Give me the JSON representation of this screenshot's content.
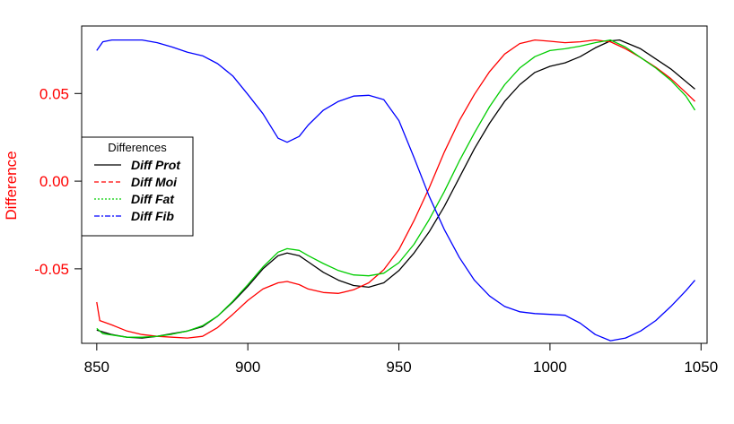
{
  "chart_data": {
    "type": "line",
    "title": "",
    "xlabel": "",
    "ylabel": "Difference",
    "xlim": [
      845,
      1052
    ],
    "ylim": [
      -0.0925,
      0.0885
    ],
    "x_ticks": [
      "850",
      "900",
      "950",
      "1000",
      "1050"
    ],
    "y_ticks": [
      "0.05",
      "0.00",
      "-0.05"
    ],
    "grid": false,
    "legend": {
      "title": "Differences",
      "placement": "left",
      "entries": [
        "Diff Prot",
        "Diff Moi",
        "Diff Fat",
        "Diff Fib"
      ]
    },
    "series": [
      {
        "name": "Diff Prot",
        "color": "#000000",
        "linestyle": "solid",
        "points": [
          [
            850,
            -0.085
          ],
          [
            855,
            -0.0875
          ],
          [
            860,
            -0.089
          ],
          [
            865,
            -0.0895
          ],
          [
            870,
            -0.0885
          ],
          [
            875,
            -0.087
          ],
          [
            880,
            -0.0855
          ],
          [
            885,
            -0.083
          ],
          [
            890,
            -0.077
          ],
          [
            895,
            -0.069
          ],
          [
            900,
            -0.06
          ],
          [
            905,
            -0.05
          ],
          [
            910,
            -0.0425
          ],
          [
            913,
            -0.041
          ],
          [
            917,
            -0.0425
          ],
          [
            920,
            -0.046
          ],
          [
            925,
            -0.052
          ],
          [
            930,
            -0.0565
          ],
          [
            935,
            -0.0595
          ],
          [
            940,
            -0.0605
          ],
          [
            945,
            -0.058
          ],
          [
            950,
            -0.051
          ],
          [
            955,
            -0.041
          ],
          [
            960,
            -0.029
          ],
          [
            965,
            -0.0145
          ],
          [
            970,
            0.002
          ],
          [
            975,
            0.0185
          ],
          [
            980,
            0.033
          ],
          [
            985,
            0.0455
          ],
          [
            990,
            0.055
          ],
          [
            995,
            0.062
          ],
          [
            1000,
            0.0655
          ],
          [
            1005,
            0.0675
          ],
          [
            1010,
            0.071
          ],
          [
            1015,
            0.076
          ],
          [
            1020,
            0.08
          ],
          [
            1023,
            0.0805
          ],
          [
            1030,
            0.0755
          ],
          [
            1040,
            0.064
          ],
          [
            1048,
            0.0525
          ]
        ]
      },
      {
        "name": "Diff Moi",
        "color": "#ff0000",
        "linestyle": "solid",
        "points": [
          [
            850,
            -0.069
          ],
          [
            851,
            -0.0795
          ],
          [
            855,
            -0.082
          ],
          [
            860,
            -0.0855
          ],
          [
            865,
            -0.0875
          ],
          [
            870,
            -0.0885
          ],
          [
            875,
            -0.089
          ],
          [
            880,
            -0.0895
          ],
          [
            885,
            -0.0885
          ],
          [
            890,
            -0.0835
          ],
          [
            895,
            -0.076
          ],
          [
            900,
            -0.068
          ],
          [
            905,
            -0.0615
          ],
          [
            910,
            -0.058
          ],
          [
            913,
            -0.0572
          ],
          [
            917,
            -0.059
          ],
          [
            920,
            -0.0615
          ],
          [
            925,
            -0.0635
          ],
          [
            930,
            -0.064
          ],
          [
            935,
            -0.062
          ],
          [
            940,
            -0.058
          ],
          [
            945,
            -0.0505
          ],
          [
            950,
            -0.039
          ],
          [
            955,
            -0.0225
          ],
          [
            960,
            -0.004
          ],
          [
            965,
            0.0165
          ],
          [
            970,
            0.0345
          ],
          [
            975,
            0.0495
          ],
          [
            980,
            0.0625
          ],
          [
            985,
            0.0725
          ],
          [
            990,
            0.0785
          ],
          [
            995,
            0.0805
          ],
          [
            1000,
            0.0798
          ],
          [
            1005,
            0.079
          ],
          [
            1010,
            0.0795
          ],
          [
            1015,
            0.0805
          ],
          [
            1020,
            0.0795
          ],
          [
            1025,
            0.0755
          ],
          [
            1030,
            0.0705
          ],
          [
            1035,
            0.065
          ],
          [
            1040,
            0.0585
          ],
          [
            1045,
            0.0505
          ],
          [
            1048,
            0.0455
          ]
        ]
      },
      {
        "name": "Diff Fat",
        "color": "#00cd00",
        "linestyle": "solid",
        "points": [
          [
            850,
            -0.084
          ],
          [
            852,
            -0.087
          ],
          [
            860,
            -0.089
          ],
          [
            865,
            -0.089
          ],
          [
            870,
            -0.0885
          ],
          [
            875,
            -0.0873
          ],
          [
            880,
            -0.0855
          ],
          [
            885,
            -0.0825
          ],
          [
            890,
            -0.077
          ],
          [
            895,
            -0.0685
          ],
          [
            900,
            -0.059
          ],
          [
            905,
            -0.049
          ],
          [
            910,
            -0.0405
          ],
          [
            913,
            -0.0385
          ],
          [
            917,
            -0.0395
          ],
          [
            920,
            -0.0425
          ],
          [
            925,
            -0.047
          ],
          [
            930,
            -0.051
          ],
          [
            935,
            -0.0535
          ],
          [
            940,
            -0.054
          ],
          [
            945,
            -0.0525
          ],
          [
            950,
            -0.0465
          ],
          [
            955,
            -0.036
          ],
          [
            960,
            -0.022
          ],
          [
            965,
            -0.006
          ],
          [
            970,
            0.0115
          ],
          [
            975,
            0.0275
          ],
          [
            980,
            0.0425
          ],
          [
            985,
            0.055
          ],
          [
            990,
            0.0645
          ],
          [
            995,
            0.071
          ],
          [
            1000,
            0.0745
          ],
          [
            1005,
            0.0755
          ],
          [
            1010,
            0.077
          ],
          [
            1015,
            0.079
          ],
          [
            1020,
            0.0805
          ],
          [
            1025,
            0.0765
          ],
          [
            1030,
            0.0705
          ],
          [
            1035,
            0.0645
          ],
          [
            1040,
            0.0575
          ],
          [
            1045,
            0.0485
          ],
          [
            1048,
            0.0405
          ]
        ]
      },
      {
        "name": "Diff Fib",
        "color": "#0000ff",
        "linestyle": "solid",
        "points": [
          [
            850,
            0.0745
          ],
          [
            852,
            0.0795
          ],
          [
            855,
            0.0805
          ],
          [
            860,
            0.0805
          ],
          [
            865,
            0.0805
          ],
          [
            870,
            0.079
          ],
          [
            875,
            0.0765
          ],
          [
            880,
            0.0735
          ],
          [
            885,
            0.0715
          ],
          [
            890,
            0.067
          ],
          [
            895,
            0.06
          ],
          [
            900,
            0.0495
          ],
          [
            905,
            0.0385
          ],
          [
            910,
            0.0245
          ],
          [
            913,
            0.0222
          ],
          [
            917,
            0.0255
          ],
          [
            920,
            0.032
          ],
          [
            925,
            0.0405
          ],
          [
            930,
            0.0455
          ],
          [
            935,
            0.0485
          ],
          [
            940,
            0.049
          ],
          [
            945,
            0.0465
          ],
          [
            950,
            0.0345
          ],
          [
            955,
            0.0135
          ],
          [
            960,
            -0.0085
          ],
          [
            965,
            -0.0275
          ],
          [
            970,
            -0.0435
          ],
          [
            975,
            -0.0565
          ],
          [
            980,
            -0.0655
          ],
          [
            985,
            -0.0715
          ],
          [
            990,
            -0.0745
          ],
          [
            995,
            -0.0755
          ],
          [
            1000,
            -0.076
          ],
          [
            1005,
            -0.0765
          ],
          [
            1010,
            -0.081
          ],
          [
            1015,
            -0.0875
          ],
          [
            1020,
            -0.091
          ],
          [
            1025,
            -0.0895
          ],
          [
            1030,
            -0.0855
          ],
          [
            1035,
            -0.0795
          ],
          [
            1040,
            -0.0715
          ],
          [
            1045,
            -0.0625
          ],
          [
            1048,
            -0.0565
          ]
        ]
      }
    ]
  }
}
